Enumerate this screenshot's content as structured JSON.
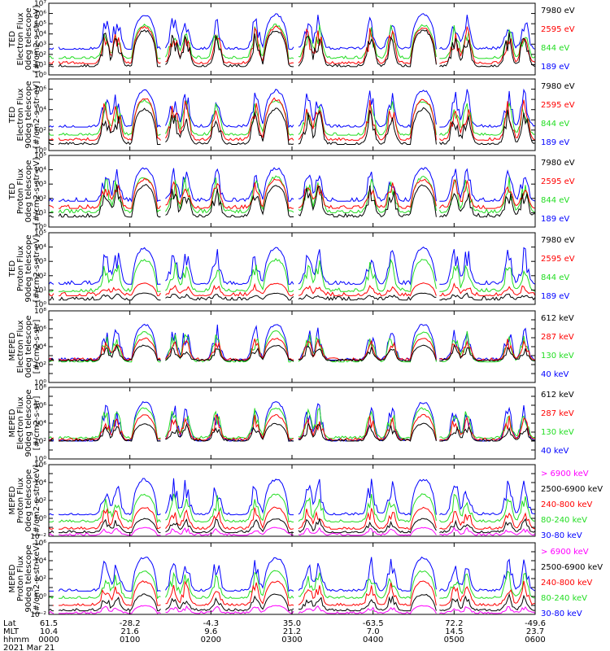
{
  "colors": {
    "black": "#000000",
    "red": "#ff0000",
    "green": "#22dd22",
    "blue": "#0000ff",
    "magenta": "#ff00ff"
  },
  "chart_data": [
    {
      "type": "line",
      "ylabel": [
        "TED",
        "Electron Flux",
        "0deg telescope",
        "[#/cm2-s-str-eV]"
      ],
      "yscale": "log",
      "ylim_exp": [
        0,
        7
      ],
      "tick_labels": [
        "10⁰",
        "10¹",
        "10²",
        "10³",
        "10⁴",
        "10⁵",
        "10⁶",
        "10⁷"
      ],
      "label_every": 1,
      "legend": [
        {
          "text": "7980 eV",
          "color": "black"
        },
        {
          "text": "2595 eV",
          "color": "red"
        },
        {
          "text": "844 eV",
          "color": "green"
        },
        {
          "text": "189 eV",
          "color": "blue"
        }
      ],
      "floors": {
        "blue": 2.5,
        "green": 1.6,
        "red": 1.1,
        "black": 0.8
      },
      "peaks": {
        "blue": 6.0,
        "green": 5.0,
        "red": 4.8,
        "black": 4.5
      }
    },
    {
      "type": "line",
      "ylabel": [
        "TED",
        "Electron Flux",
        "90deg telescope",
        "[#/cm2-s-str-eV]"
      ],
      "yscale": "log",
      "ylim_exp": [
        0,
        7
      ],
      "tick_labels": [
        "10⁰",
        "10¹",
        "10²",
        "10³",
        "10⁴",
        "10⁵",
        "10⁶",
        "10⁷"
      ],
      "label_every": 2,
      "legend": [
        {
          "text": "7980 eV",
          "color": "black"
        },
        {
          "text": "2595 eV",
          "color": "red"
        },
        {
          "text": "844 eV",
          "color": "green"
        },
        {
          "text": "189 eV",
          "color": "blue"
        }
      ],
      "floors": {
        "blue": 2.3,
        "green": 1.5,
        "red": 1.0,
        "black": 0.6
      },
      "peaks": {
        "blue": 6.0,
        "green": 5.0,
        "red": 5.2,
        "black": 4.2
      }
    },
    {
      "type": "line",
      "ylabel": [
        "TED",
        "Proton Flux",
        "0deg telescope",
        "[#/cm2-s-str-eV]"
      ],
      "yscale": "log",
      "ylim_exp": [
        0,
        5
      ],
      "tick_labels": [
        "10⁰",
        "10¹",
        "10²",
        "10³",
        "10⁴",
        "10⁵"
      ],
      "label_every": 1,
      "legend": [
        {
          "text": "7980 eV",
          "color": "black"
        },
        {
          "text": "2595 eV",
          "color": "red"
        },
        {
          "text": "844 eV",
          "color": "green"
        },
        {
          "text": "189 eV",
          "color": "blue"
        }
      ],
      "floors": {
        "blue": 1.8,
        "green": 1.0,
        "red": 1.3,
        "black": 0.7
      },
      "peaks": {
        "blue": 4.2,
        "green": 3.6,
        "red": 3.4,
        "black": 3.0
      }
    },
    {
      "type": "line",
      "ylabel": [
        "TED",
        "Proton Flux",
        "90deg telescope",
        "[#/cm2-s-str-eV]"
      ],
      "yscale": "log",
      "ylim_exp": [
        0,
        5
      ],
      "tick_labels": [
        "10⁰",
        "10¹",
        "10²",
        "10³",
        "10⁴",
        "10⁵"
      ],
      "label_every": 1,
      "legend": [
        {
          "text": "7980 eV",
          "color": "black"
        },
        {
          "text": "2595 eV",
          "color": "red"
        },
        {
          "text": "844 eV",
          "color": "green"
        },
        {
          "text": "189 eV",
          "color": "blue"
        }
      ],
      "floors": {
        "blue": 1.4,
        "green": 0.9,
        "red": 0.6,
        "black": 0.3
      },
      "peaks": {
        "blue": 4.0,
        "green": 3.2,
        "red": 1.5,
        "black": 0.8
      }
    },
    {
      "type": "line",
      "ylabel": [
        "MEPED",
        "Electron Flux",
        "0deg telescope",
        "[#/cm2-s-str]"
      ],
      "yscale": "log",
      "ylim_exp": [
        0,
        8
      ],
      "tick_labels": [
        "10⁰",
        "10¹",
        "10²",
        "10³",
        "10⁴",
        "10⁵",
        "10⁶",
        "10⁷",
        "10⁸"
      ],
      "label_every": 2,
      "legend": [
        {
          "text": "612 keV",
          "color": "black"
        },
        {
          "text": "287 keV",
          "color": "red"
        },
        {
          "text": "130 keV",
          "color": "green"
        },
        {
          "text": "40 keV",
          "color": "blue"
        }
      ],
      "floors": {
        "blue": 2.5,
        "green": 2.3,
        "red": 2.5,
        "black": 2.4
      },
      "peaks": {
        "blue": 6.6,
        "green": 5.8,
        "red": 5.0,
        "black": 4.2
      }
    },
    {
      "type": "line",
      "ylabel": [
        "MEPED",
        "Electron Flux",
        "90deg telescope",
        "[#/cm2-s-str]"
      ],
      "yscale": "log",
      "ylim_exp": [
        0,
        8
      ],
      "tick_labels": [
        "10⁰",
        "10¹",
        "10²",
        "10³",
        "10⁴",
        "10⁵",
        "10⁶",
        "10⁷",
        "10⁸"
      ],
      "label_every": 2,
      "legend": [
        {
          "text": "612 keV",
          "color": "black"
        },
        {
          "text": "287 keV",
          "color": "red"
        },
        {
          "text": "130 keV",
          "color": "green"
        },
        {
          "text": "40 keV",
          "color": "blue"
        }
      ],
      "floors": {
        "blue": 2.0,
        "green": 2.3,
        "red": 2.1,
        "black": 2.0
      },
      "peaks": {
        "blue": 6.5,
        "green": 5.8,
        "red": 5.0,
        "black": 4.0
      }
    },
    {
      "type": "line",
      "ylabel": [
        "MEPED",
        "Proton Flux",
        "0deg telescope",
        "[#/cm2-s-str-keV]"
      ],
      "yscale": "log",
      "ylim_exp": [
        -2,
        6
      ],
      "tick_labels": [
        "10⁻²",
        "10⁻¹",
        "10⁰",
        "10¹",
        "10²",
        "10³",
        "10⁴",
        "10⁵",
        "10⁶"
      ],
      "label_every": 2,
      "legend": [
        {
          "text": "> 6900 keV",
          "color": "magenta"
        },
        {
          "text": "2500-6900 keV",
          "color": "black"
        },
        {
          "text": "240-800 keV",
          "color": "red"
        },
        {
          "text": "80-240 keV",
          "color": "green"
        },
        {
          "text": "30-80 keV",
          "color": "blue"
        }
      ],
      "floors": {
        "blue": 0.4,
        "green": -0.4,
        "red": -1.2,
        "black": -1.6,
        "magenta": -1.9
      },
      "peaks": {
        "blue": 4.5,
        "green": 2.8,
        "red": 1.3,
        "black": 0.0,
        "magenta": -1.0
      }
    },
    {
      "type": "line",
      "ylabel": [
        "MEPED",
        "Proton Flux",
        "90deg telescope",
        "[#/cm2-s-str-keV]"
      ],
      "yscale": "log",
      "ylim_exp": [
        -2,
        6
      ],
      "tick_labels": [
        "10⁻²",
        "10⁻¹",
        "10⁰",
        "10¹",
        "10²",
        "10³",
        "10⁴",
        "10⁵",
        "10⁶"
      ],
      "label_every": 2,
      "legend": [
        {
          "text": "> 6900 keV",
          "color": "magenta"
        },
        {
          "text": "2500-6900 keV",
          "color": "black"
        },
        {
          "text": "240-800 keV",
          "color": "red"
        },
        {
          "text": "80-240 keV",
          "color": "green"
        },
        {
          "text": "30-80 keV",
          "color": "blue"
        }
      ],
      "floors": {
        "blue": 0.6,
        "green": -0.2,
        "red": -1.0,
        "black": -1.6,
        "magenta": -1.9
      },
      "peaks": {
        "blue": 4.5,
        "green": 3.0,
        "red": 1.8,
        "black": 0.3,
        "magenta": -1.0
      }
    }
  ],
  "x_axis": {
    "row_labels": [
      "Lat",
      "MLT",
      "hhmm"
    ],
    "columns": [
      {
        "lat": "61.5",
        "mlt": "10.4",
        "hhmm": "0000"
      },
      {
        "lat": "-28.2",
        "mlt": "21.6",
        "hhmm": "0100"
      },
      {
        "lat": "-4.3",
        "mlt": "9.6",
        "hhmm": "0200"
      },
      {
        "lat": "35.0",
        "mlt": "21.2",
        "hhmm": "0300"
      },
      {
        "lat": "-63.5",
        "mlt": "7.0",
        "hhmm": "0400"
      },
      {
        "lat": "72.2",
        "mlt": "14.5",
        "hhmm": "0500"
      },
      {
        "lat": "-49.6",
        "mlt": "23.7",
        "hhmm": "0600"
      }
    ],
    "date": "2021 Mar 21"
  }
}
